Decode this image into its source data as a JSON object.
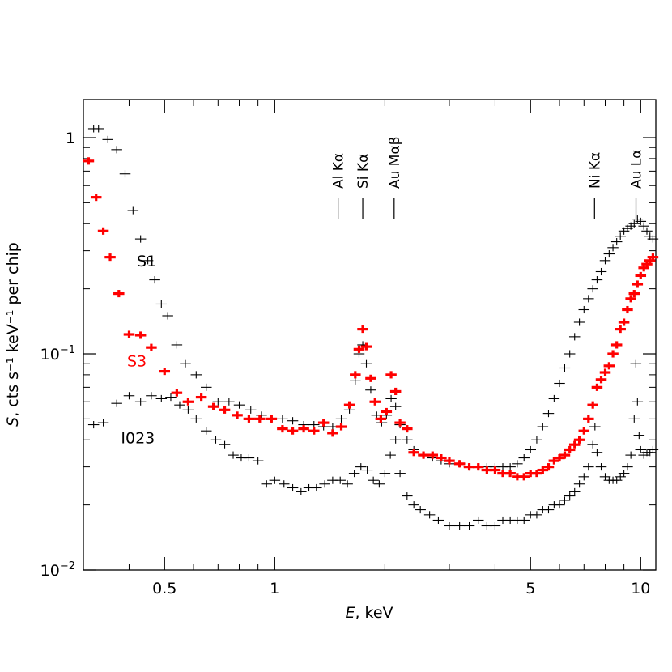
{
  "chart_data": {
    "type": "scatter",
    "title": "",
    "xlabel_italic": "E",
    "xlabel_rest": ", keV",
    "ylabel_italic": "S",
    "ylabel_rest": ", cts s⁻¹ keV⁻¹ per chip",
    "x_scale": "log",
    "y_scale": "log",
    "xlim": [
      0.3,
      11
    ],
    "ylim": [
      0.01,
      1.5
    ],
    "x_ticks": [
      {
        "value": 0.5,
        "label": "0.5"
      },
      {
        "value": 1,
        "label": "1"
      },
      {
        "value": 5,
        "label": "5"
      },
      {
        "value": 10,
        "label": "10"
      }
    ],
    "y_ticks": [
      {
        "value": 1,
        "mant": "1",
        "exp": ""
      },
      {
        "value": 0.1,
        "mant": "10",
        "exp": "−1"
      },
      {
        "value": 0.01,
        "mant": "10",
        "exp": "−2"
      }
    ],
    "line_markers": [
      {
        "energy": 1.49,
        "label": "Al Kα"
      },
      {
        "energy": 1.74,
        "label": "Si Kα"
      },
      {
        "energy": 2.12,
        "label": "Au Mαβ"
      },
      {
        "energy": 7.48,
        "label": "Ni Kα"
      },
      {
        "energy": 9.71,
        "label": "Au Lα"
      }
    ],
    "series": [
      {
        "name": "S1",
        "color": "#000000",
        "label_at": [
          0.42,
          0.27
        ],
        "points": [
          [
            0.32,
            1.1
          ],
          [
            0.33,
            1.1
          ],
          [
            0.35,
            0.98
          ],
          [
            0.37,
            0.88
          ],
          [
            0.39,
            0.68
          ],
          [
            0.41,
            0.46
          ],
          [
            0.43,
            0.34
          ],
          [
            0.45,
            0.27
          ],
          [
            0.47,
            0.22
          ],
          [
            0.49,
            0.17
          ],
          [
            0.51,
            0.15
          ],
          [
            0.54,
            0.11
          ],
          [
            0.57,
            0.09
          ],
          [
            0.61,
            0.08
          ],
          [
            0.65,
            0.07
          ],
          [
            0.7,
            0.06
          ],
          [
            0.75,
            0.06
          ],
          [
            0.8,
            0.058
          ],
          [
            0.86,
            0.055
          ],
          [
            0.92,
            0.052
          ],
          [
            0.98,
            0.05
          ],
          [
            1.05,
            0.05
          ],
          [
            1.12,
            0.049
          ],
          [
            1.2,
            0.047
          ],
          [
            1.28,
            0.047
          ],
          [
            1.36,
            0.046
          ],
          [
            1.44,
            0.046
          ],
          [
            1.52,
            0.05
          ],
          [
            1.6,
            0.055
          ],
          [
            1.66,
            0.075
          ],
          [
            1.7,
            0.1
          ],
          [
            1.74,
            0.11
          ],
          [
            1.78,
            0.09
          ],
          [
            1.83,
            0.068
          ],
          [
            1.9,
            0.052
          ],
          [
            1.96,
            0.048
          ],
          [
            2.02,
            0.052
          ],
          [
            2.08,
            0.062
          ],
          [
            2.14,
            0.057
          ],
          [
            2.2,
            0.047
          ],
          [
            2.3,
            0.04
          ],
          [
            2.4,
            0.036
          ],
          [
            2.55,
            0.034
          ],
          [
            2.7,
            0.033
          ],
          [
            2.85,
            0.032
          ],
          [
            3.0,
            0.031
          ],
          [
            3.2,
            0.031
          ],
          [
            3.4,
            0.03
          ],
          [
            3.6,
            0.03
          ],
          [
            3.8,
            0.03
          ],
          [
            4.0,
            0.03
          ],
          [
            4.2,
            0.03
          ],
          [
            4.4,
            0.03
          ],
          [
            4.6,
            0.031
          ],
          [
            4.8,
            0.033
          ],
          [
            5.0,
            0.036
          ],
          [
            5.2,
            0.04
          ],
          [
            5.4,
            0.046
          ],
          [
            5.6,
            0.053
          ],
          [
            5.8,
            0.062
          ],
          [
            6.0,
            0.073
          ],
          [
            6.2,
            0.086
          ],
          [
            6.4,
            0.1
          ],
          [
            6.6,
            0.12
          ],
          [
            6.8,
            0.14
          ],
          [
            7.0,
            0.16
          ],
          [
            7.2,
            0.18
          ],
          [
            7.4,
            0.2
          ],
          [
            7.6,
            0.22
          ],
          [
            7.8,
            0.24
          ],
          [
            8.0,
            0.27
          ],
          [
            8.2,
            0.29
          ],
          [
            8.4,
            0.31
          ],
          [
            8.6,
            0.33
          ],
          [
            8.8,
            0.35
          ],
          [
            9.0,
            0.37
          ],
          [
            9.2,
            0.38
          ],
          [
            9.4,
            0.39
          ],
          [
            9.6,
            0.4
          ],
          [
            9.8,
            0.42
          ],
          [
            10.0,
            0.41
          ],
          [
            10.2,
            0.39
          ],
          [
            10.4,
            0.37
          ],
          [
            10.6,
            0.35
          ],
          [
            10.8,
            0.34
          ]
        ]
      },
      {
        "name": "S3",
        "color": "#ff0000",
        "label_at": [
          0.395,
          0.093
        ],
        "points": [
          [
            0.31,
            0.78
          ],
          [
            0.325,
            0.53
          ],
          [
            0.34,
            0.37
          ],
          [
            0.355,
            0.28
          ],
          [
            0.375,
            0.19
          ],
          [
            0.4,
            0.123
          ],
          [
            0.43,
            0.122
          ],
          [
            0.46,
            0.107
          ],
          [
            0.5,
            0.083
          ],
          [
            0.54,
            0.066
          ],
          [
            0.58,
            0.06
          ],
          [
            0.63,
            0.063
          ],
          [
            0.68,
            0.057
          ],
          [
            0.73,
            0.055
          ],
          [
            0.79,
            0.052
          ],
          [
            0.85,
            0.05
          ],
          [
            0.91,
            0.05
          ],
          [
            0.98,
            0.05
          ],
          [
            1.05,
            0.045
          ],
          [
            1.12,
            0.044
          ],
          [
            1.2,
            0.045
          ],
          [
            1.28,
            0.044
          ],
          [
            1.36,
            0.048
          ],
          [
            1.44,
            0.043
          ],
          [
            1.52,
            0.046
          ],
          [
            1.6,
            0.058
          ],
          [
            1.66,
            0.08
          ],
          [
            1.7,
            0.105
          ],
          [
            1.74,
            0.13
          ],
          [
            1.78,
            0.108
          ],
          [
            1.83,
            0.077
          ],
          [
            1.88,
            0.06
          ],
          [
            1.95,
            0.05
          ],
          [
            2.02,
            0.054
          ],
          [
            2.08,
            0.08
          ],
          [
            2.14,
            0.067
          ],
          [
            2.2,
            0.048
          ],
          [
            2.3,
            0.045
          ],
          [
            2.4,
            0.035
          ],
          [
            2.55,
            0.034
          ],
          [
            2.7,
            0.034
          ],
          [
            2.85,
            0.033
          ],
          [
            3.0,
            0.032
          ],
          [
            3.2,
            0.031
          ],
          [
            3.4,
            0.03
          ],
          [
            3.6,
            0.03
          ],
          [
            3.8,
            0.029
          ],
          [
            4.0,
            0.029
          ],
          [
            4.2,
            0.028
          ],
          [
            4.4,
            0.028
          ],
          [
            4.6,
            0.027
          ],
          [
            4.8,
            0.027
          ],
          [
            5.0,
            0.028
          ],
          [
            5.2,
            0.028
          ],
          [
            5.4,
            0.029
          ],
          [
            5.6,
            0.03
          ],
          [
            5.8,
            0.032
          ],
          [
            6.0,
            0.033
          ],
          [
            6.2,
            0.034
          ],
          [
            6.4,
            0.036
          ],
          [
            6.6,
            0.038
          ],
          [
            6.8,
            0.04
          ],
          [
            7.0,
            0.044
          ],
          [
            7.2,
            0.05
          ],
          [
            7.4,
            0.058
          ],
          [
            7.6,
            0.07
          ],
          [
            7.8,
            0.076
          ],
          [
            8.0,
            0.082
          ],
          [
            8.2,
            0.088
          ],
          [
            8.4,
            0.1
          ],
          [
            8.6,
            0.11
          ],
          [
            8.8,
            0.13
          ],
          [
            9.0,
            0.14
          ],
          [
            9.2,
            0.16
          ],
          [
            9.4,
            0.18
          ],
          [
            9.6,
            0.19
          ],
          [
            9.8,
            0.21
          ],
          [
            10.0,
            0.23
          ],
          [
            10.2,
            0.25
          ],
          [
            10.4,
            0.26
          ],
          [
            10.6,
            0.27
          ],
          [
            10.8,
            0.28
          ]
        ]
      },
      {
        "name": "I023",
        "color": "#000000",
        "label_at": [
          0.38,
          0.041
        ],
        "points": [
          [
            0.32,
            0.047
          ],
          [
            0.34,
            0.048
          ],
          [
            0.37,
            0.059
          ],
          [
            0.4,
            0.064
          ],
          [
            0.43,
            0.06
          ],
          [
            0.46,
            0.064
          ],
          [
            0.49,
            0.062
          ],
          [
            0.52,
            0.063
          ],
          [
            0.55,
            0.058
          ],
          [
            0.58,
            0.055
          ],
          [
            0.61,
            0.05
          ],
          [
            0.65,
            0.044
          ],
          [
            0.69,
            0.04
          ],
          [
            0.73,
            0.038
          ],
          [
            0.77,
            0.034
          ],
          [
            0.81,
            0.033
          ],
          [
            0.85,
            0.033
          ],
          [
            0.9,
            0.032
          ],
          [
            0.95,
            0.025
          ],
          [
            1.0,
            0.026
          ],
          [
            1.06,
            0.025
          ],
          [
            1.12,
            0.024
          ],
          [
            1.18,
            0.023
          ],
          [
            1.24,
            0.024
          ],
          [
            1.3,
            0.024
          ],
          [
            1.37,
            0.025
          ],
          [
            1.44,
            0.026
          ],
          [
            1.51,
            0.026
          ],
          [
            1.58,
            0.025
          ],
          [
            1.65,
            0.028
          ],
          [
            1.72,
            0.03
          ],
          [
            1.79,
            0.029
          ],
          [
            1.86,
            0.026
          ],
          [
            1.93,
            0.025
          ],
          [
            2.0,
            0.028
          ],
          [
            2.07,
            0.034
          ],
          [
            2.14,
            0.04
          ],
          [
            2.2,
            0.028
          ],
          [
            2.3,
            0.022
          ],
          [
            2.4,
            0.02
          ],
          [
            2.5,
            0.019
          ],
          [
            2.65,
            0.018
          ],
          [
            2.8,
            0.017
          ],
          [
            3.0,
            0.016
          ],
          [
            3.2,
            0.016
          ],
          [
            3.4,
            0.016
          ],
          [
            3.6,
            0.017
          ],
          [
            3.8,
            0.016
          ],
          [
            4.0,
            0.016
          ],
          [
            4.2,
            0.017
          ],
          [
            4.4,
            0.017
          ],
          [
            4.6,
            0.017
          ],
          [
            4.8,
            0.017
          ],
          [
            5.0,
            0.018
          ],
          [
            5.2,
            0.018
          ],
          [
            5.4,
            0.019
          ],
          [
            5.6,
            0.019
          ],
          [
            5.8,
            0.02
          ],
          [
            6.0,
            0.02
          ],
          [
            6.2,
            0.021
          ],
          [
            6.4,
            0.022
          ],
          [
            6.6,
            0.023
          ],
          [
            6.8,
            0.025
          ],
          [
            7.0,
            0.027
          ],
          [
            7.2,
            0.03
          ],
          [
            7.4,
            0.038
          ],
          [
            7.5,
            0.046
          ],
          [
            7.6,
            0.035
          ],
          [
            7.8,
            0.03
          ],
          [
            8.0,
            0.027
          ],
          [
            8.2,
            0.026
          ],
          [
            8.4,
            0.026
          ],
          [
            8.6,
            0.026
          ],
          [
            8.8,
            0.027
          ],
          [
            9.0,
            0.028
          ],
          [
            9.2,
            0.03
          ],
          [
            9.4,
            0.034
          ],
          [
            9.6,
            0.05
          ],
          [
            9.7,
            0.09
          ],
          [
            9.8,
            0.06
          ],
          [
            9.9,
            0.042
          ],
          [
            10.0,
            0.036
          ],
          [
            10.2,
            0.034
          ],
          [
            10.4,
            0.035
          ],
          [
            10.6,
            0.035
          ],
          [
            10.8,
            0.036
          ]
        ]
      }
    ]
  }
}
